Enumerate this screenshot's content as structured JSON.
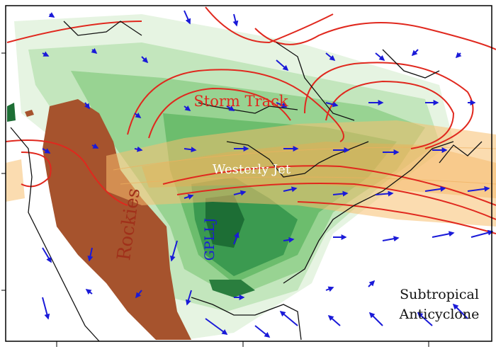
{
  "labels": {
    "storm_track": "Storm Track",
    "westerly_jet": "Westerly Jet",
    "rockies": "Rockies",
    "gpllj": "GPLLJ",
    "anticyclone": [
      "Subtropical",
      "Anticyclone"
    ]
  }
}
